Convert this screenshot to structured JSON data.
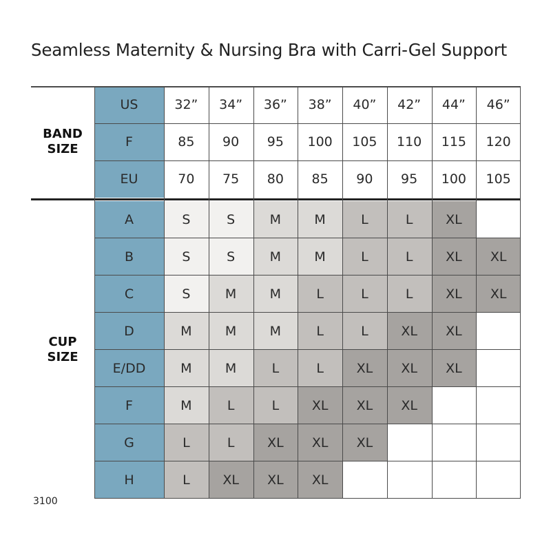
{
  "title": "Seamless Maternity & Nursing Bra with Carri-Gel Support",
  "product_code": "3100",
  "colors": {
    "label_column": "#7aa8bf",
    "grid_line": "#4a4a4a",
    "S": "#f2f1ef",
    "M": "#dcdad7",
    "L": "#c2bfbc",
    "XL": "#a6a3a0",
    "empty": "#ffffff"
  },
  "band": {
    "label_line1": "BAND",
    "label_line2": "SIZE",
    "rows": [
      {
        "system": "US",
        "values": [
          "32”",
          "34”",
          "36”",
          "38”",
          "40”",
          "42”",
          "44”",
          "46”"
        ]
      },
      {
        "system": "F",
        "values": [
          "85",
          "90",
          "95",
          "100",
          "105",
          "110",
          "115",
          "120"
        ]
      },
      {
        "system": "EU",
        "values": [
          "70",
          "75",
          "80",
          "85",
          "90",
          "95",
          "100",
          "105"
        ]
      }
    ]
  },
  "cup": {
    "label_line1": "CUP",
    "label_line2": "SIZE",
    "rows": [
      {
        "cup": "A",
        "sizes": [
          "S",
          "S",
          "M",
          "M",
          "L",
          "L",
          "XL",
          ""
        ]
      },
      {
        "cup": "B",
        "sizes": [
          "S",
          "S",
          "M",
          "M",
          "L",
          "L",
          "XL",
          "XL"
        ]
      },
      {
        "cup": "C",
        "sizes": [
          "S",
          "M",
          "M",
          "L",
          "L",
          "L",
          "XL",
          "XL"
        ]
      },
      {
        "cup": "D",
        "sizes": [
          "M",
          "M",
          "M",
          "L",
          "L",
          "XL",
          "XL",
          ""
        ]
      },
      {
        "cup": "E/DD",
        "sizes": [
          "M",
          "M",
          "L",
          "L",
          "XL",
          "XL",
          "XL",
          ""
        ]
      },
      {
        "cup": "F",
        "sizes": [
          "M",
          "L",
          "L",
          "XL",
          "XL",
          "XL",
          "",
          ""
        ]
      },
      {
        "cup": "G",
        "sizes": [
          "L",
          "L",
          "XL",
          "XL",
          "XL",
          "",
          "",
          ""
        ]
      },
      {
        "cup": "H",
        "sizes": [
          "L",
          "XL",
          "XL",
          "XL",
          "",
          "",
          "",
          ""
        ]
      }
    ]
  }
}
